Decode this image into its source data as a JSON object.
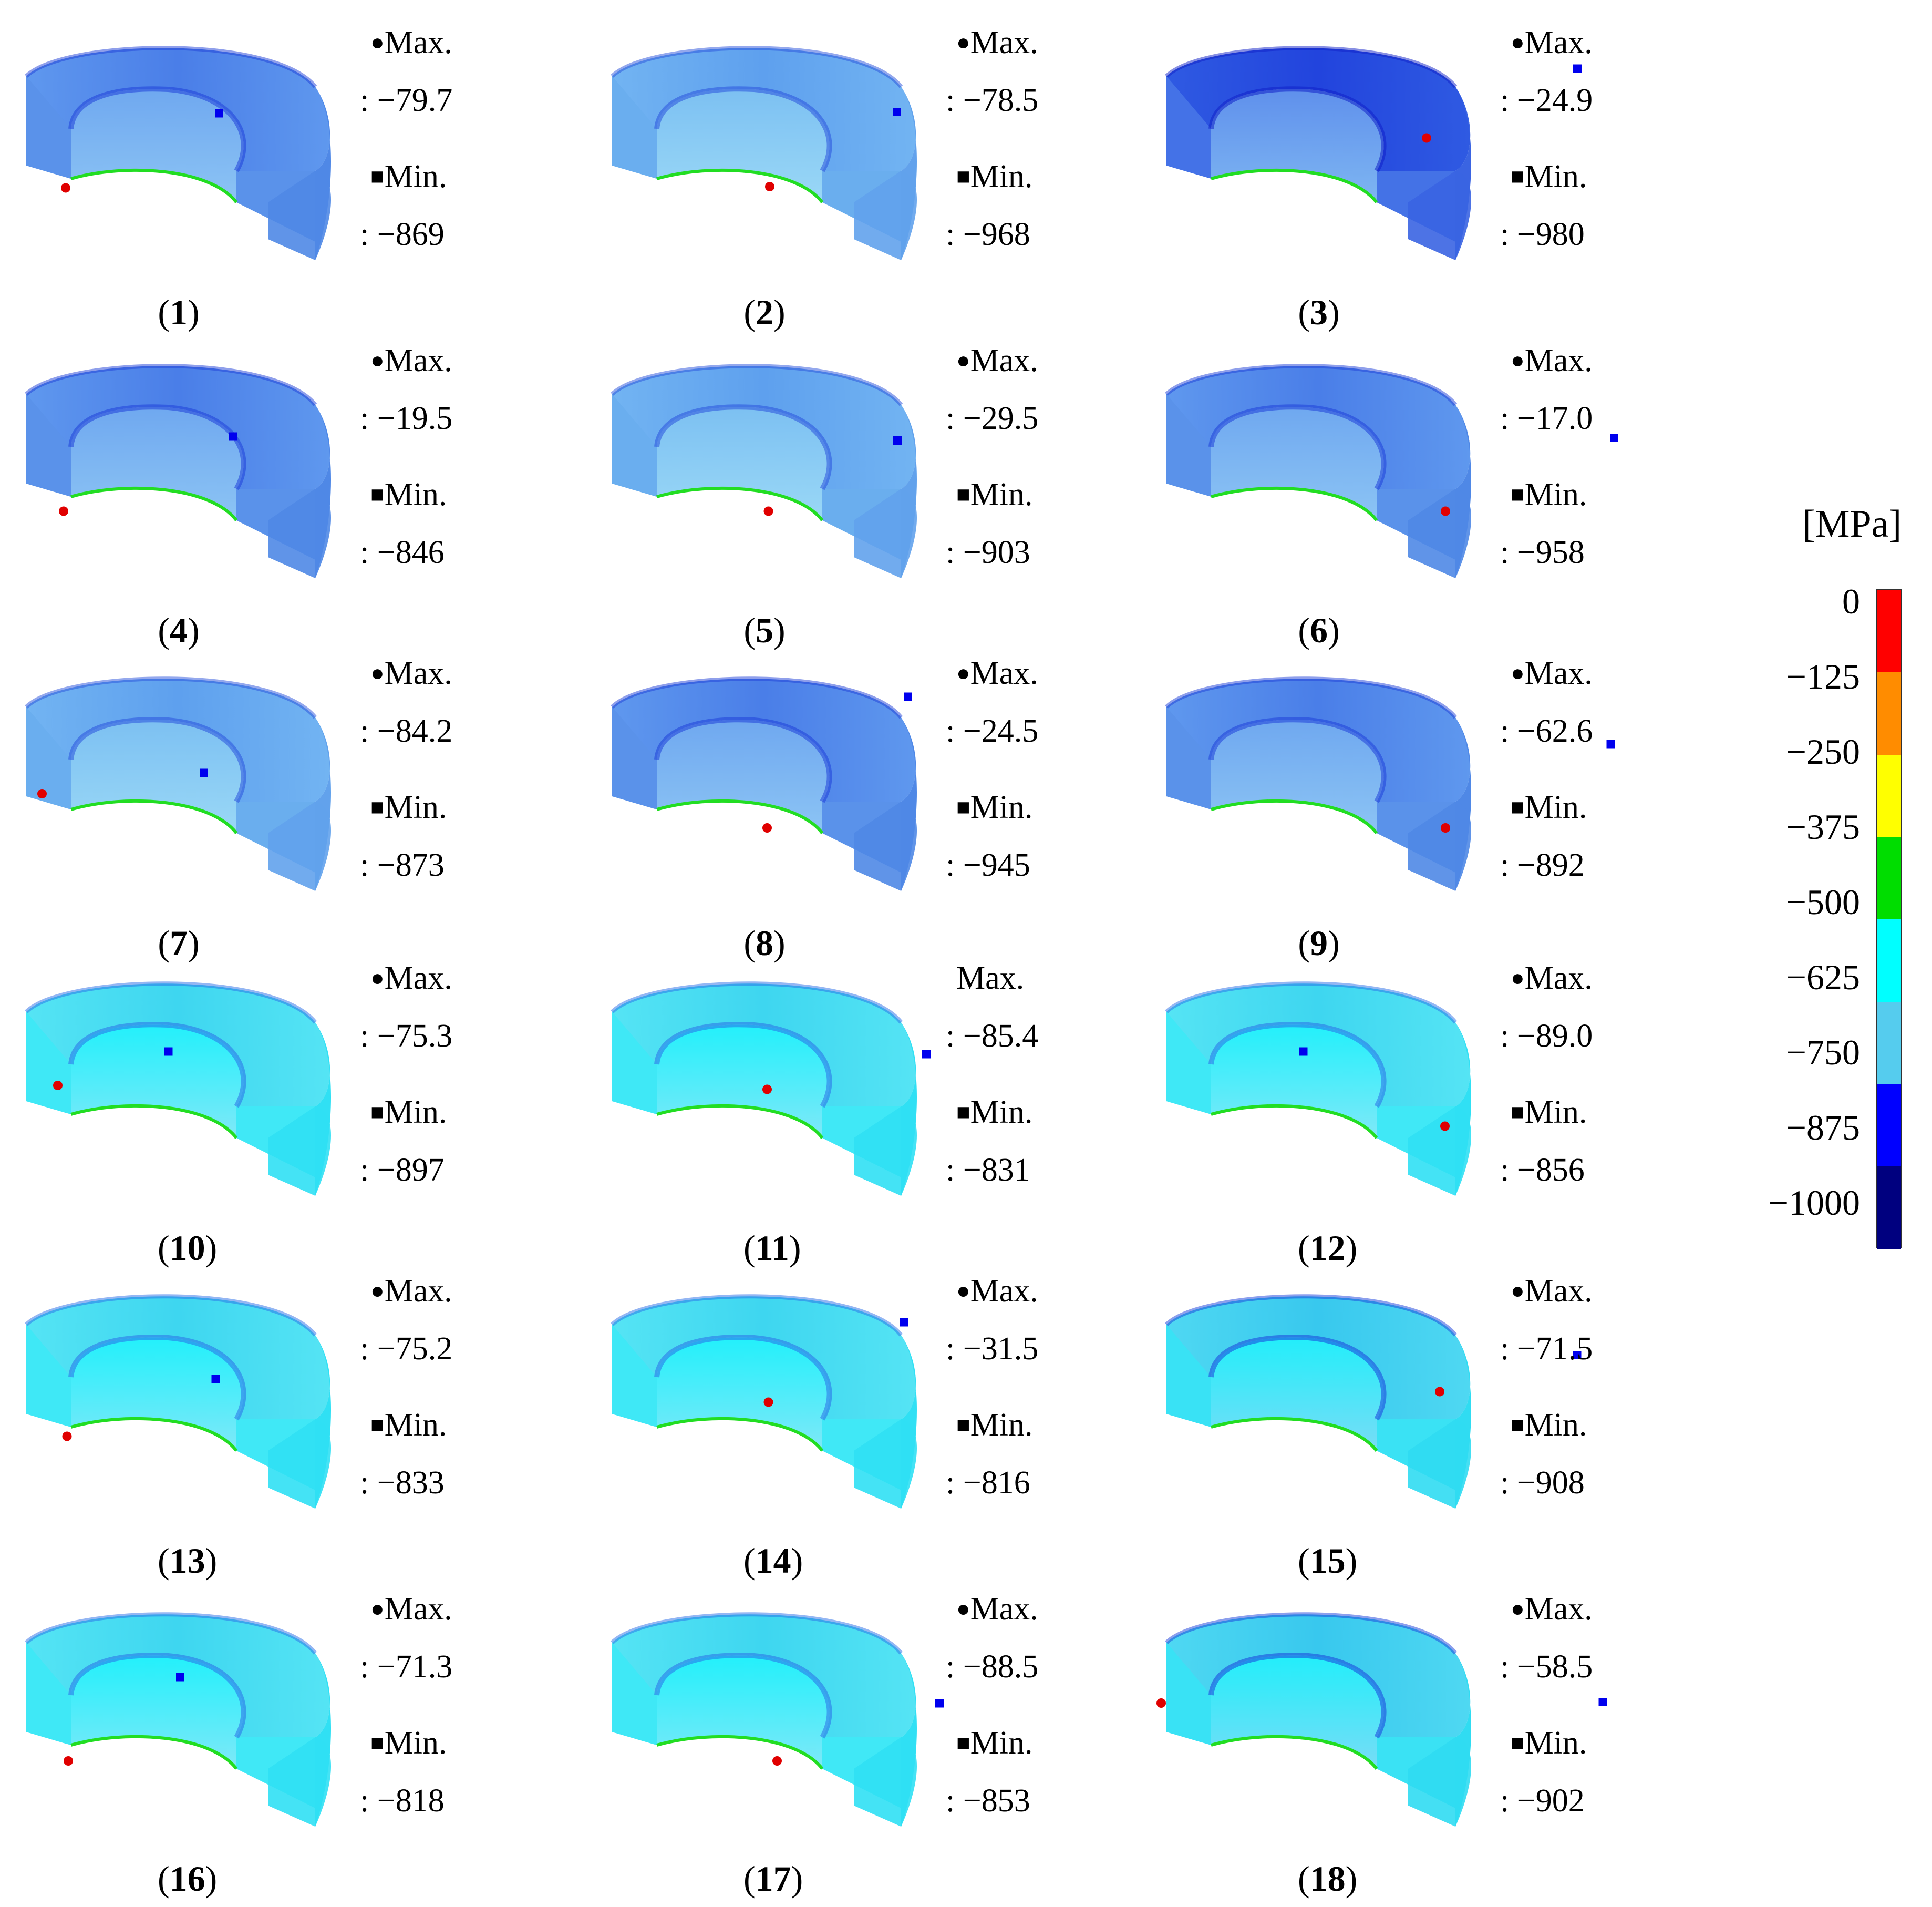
{
  "panels": [
    {
      "id": "1",
      "max_label": "Max.",
      "max_value": ": −79.7",
      "min_label": "Min.",
      "min_value": ": −869",
      "palette": "dark"
    },
    {
      "id": "2",
      "max_label": "Max.",
      "max_value": ": −78.5",
      "min_label": "Min.",
      "min_value": ": −968",
      "palette": "mid"
    },
    {
      "id": "3",
      "max_label": "Max.",
      "max_value": ": −24.9",
      "min_label": "Min.",
      "min_value": ": −980",
      "palette": "deep"
    },
    {
      "id": "4",
      "max_label": "Max.",
      "max_value": ": −19.5",
      "min_label": "Min.",
      "min_value": ": −846",
      "palette": "dark"
    },
    {
      "id": "5",
      "max_label": "Max.",
      "max_value": ": −29.5",
      "min_label": "Min.",
      "min_value": ": −903",
      "palette": "mid"
    },
    {
      "id": "6",
      "max_label": "Max.",
      "max_value": ": −17.0",
      "min_label": "Min.",
      "min_value": ": −958",
      "palette": "dark"
    },
    {
      "id": "7",
      "max_label": "Max.",
      "max_value": ": −84.2",
      "min_label": "Min.",
      "min_value": ": −873",
      "palette": "mid"
    },
    {
      "id": "8",
      "max_label": "Max.",
      "max_value": ": −24.5",
      "min_label": "Min.",
      "min_value": ": −945",
      "palette": "dark"
    },
    {
      "id": "9",
      "max_label": "Max.",
      "max_value": ": −62.6",
      "min_label": "Min.",
      "min_value": ": −892",
      "palette": "dark"
    },
    {
      "id": "10",
      "max_label": "Max.",
      "max_value": ": −75.3",
      "min_label": "Min.",
      "min_value": ": −897",
      "palette": "light"
    },
    {
      "id": "11",
      "max_label": "Max.",
      "max_value": ": −85.4",
      "min_label": "Min.",
      "min_value": ": −831",
      "palette": "light"
    },
    {
      "id": "12",
      "max_label": "Max.",
      "max_value": ": −89.0",
      "min_label": "Min.",
      "min_value": ": −856",
      "palette": "light"
    },
    {
      "id": "13",
      "max_label": "Max.",
      "max_value": ": −75.2",
      "min_label": "Min.",
      "min_value": ": −833",
      "palette": "light"
    },
    {
      "id": "14",
      "max_label": "Max.",
      "max_value": ": −31.5",
      "min_label": "Min.",
      "min_value": ": −816",
      "palette": "light"
    },
    {
      "id": "15",
      "max_label": "Max.",
      "max_value": ": −71.5",
      "min_label": "Min.",
      "min_value": ": −908",
      "palette": "lightdark"
    },
    {
      "id": "16",
      "max_label": "Max.",
      "max_value": ": −71.3",
      "min_label": "Min.",
      "min_value": ": −818",
      "palette": "light"
    },
    {
      "id": "17",
      "max_label": "Max.",
      "max_value": ": −88.5",
      "min_label": "Min.",
      "min_value": ": −853",
      "palette": "light"
    },
    {
      "id": "18",
      "max_label": "Max.",
      "max_value": ": −58.5",
      "min_label": "Min.",
      "min_value": ": −902",
      "palette": "lightdark"
    }
  ],
  "legend": {
    "unit": "[MPa]",
    "ticks": [
      "0",
      "−125",
      "−250",
      "−375",
      "−500",
      "−625",
      "−750",
      "−875",
      "−1000"
    ],
    "bands": [
      "#ff0000",
      "#ff8c00",
      "#ffff00",
      "#00dd00",
      "#00ffff",
      "#55ccee",
      "#0000ff",
      "#00007f"
    ]
  },
  "colors": {
    "max_marker": "#e00000",
    "min_marker": "#0000ee",
    "inner_edge": "#22dd22"
  }
}
